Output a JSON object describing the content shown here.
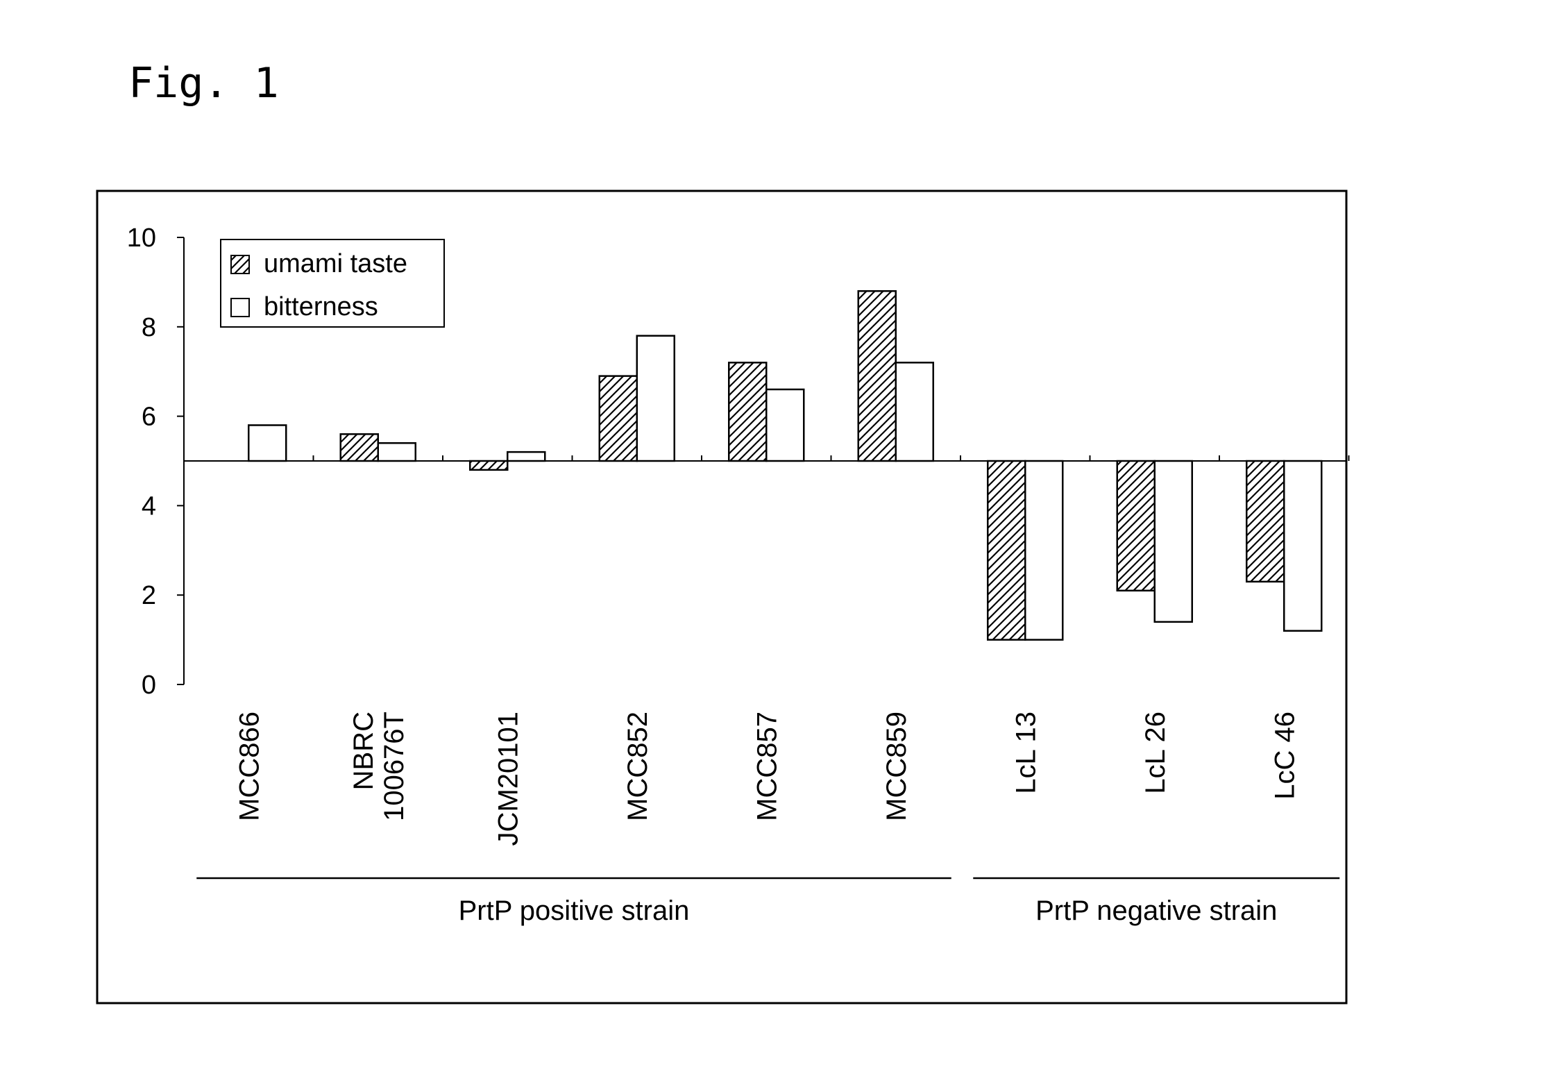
{
  "figure_label": "Fig. 1",
  "chart_data": {
    "type": "bar",
    "baseline": 5,
    "ylim": [
      0,
      10
    ],
    "yticks": [
      0,
      2,
      4,
      6,
      8,
      10
    ],
    "categories": [
      [
        "MCC866"
      ],
      [
        "NBRC",
        "100676T"
      ],
      [
        "JCM20101"
      ],
      [
        "MCC852"
      ],
      [
        "MCC857"
      ],
      [
        "MCC859"
      ],
      [
        "LcL 13"
      ],
      [
        "LcL 26"
      ],
      [
        "LcC 46"
      ]
    ],
    "series": [
      {
        "name": "umami taste",
        "pattern": "hatched",
        "values": [
          5.0,
          5.6,
          4.8,
          6.9,
          7.2,
          8.8,
          1.0,
          2.1,
          2.3
        ]
      },
      {
        "name": "bitterness",
        "pattern": "open",
        "values": [
          5.8,
          5.4,
          5.2,
          7.8,
          6.6,
          7.2,
          1.0,
          1.4,
          1.2
        ]
      }
    ],
    "groups": [
      {
        "label": "PrtP positive strain",
        "from": 0,
        "to": 5
      },
      {
        "label": "PrtP negative strain",
        "from": 6,
        "to": 8
      }
    ],
    "legend_position": "top-left"
  }
}
